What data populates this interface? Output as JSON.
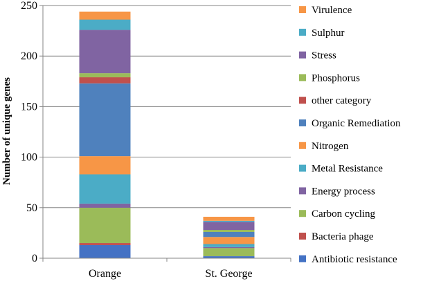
{
  "chart_data": {
    "type": "bar",
    "stacked": true,
    "title": "",
    "xlabel": "",
    "ylabel": "Number of unique genes",
    "ylim": [
      0,
      250
    ],
    "yticks": [
      0,
      50,
      100,
      150,
      200,
      250
    ],
    "grid": true,
    "legend_position": "right",
    "categories": [
      "Orange",
      "St. George"
    ],
    "series": [
      {
        "name": "Antibiotic resistance",
        "color": "#4472C4",
        "values": [
          13,
          2
        ]
      },
      {
        "name": "Bacteria phage",
        "color": "#C0504D",
        "values": [
          2,
          0
        ]
      },
      {
        "name": "Carbon cycling",
        "color": "#9BBB59",
        "values": [
          35,
          8
        ]
      },
      {
        "name": "Energy process",
        "color": "#8064A2",
        "values": [
          4,
          1
        ]
      },
      {
        "name": "Metal Resistance",
        "color": "#4BACC6",
        "values": [
          29,
          3
        ]
      },
      {
        "name": "Nitrogen",
        "color": "#F79646",
        "values": [
          18,
          7
        ]
      },
      {
        "name": "Organic Remediation",
        "color": "#4F81BD",
        "values": [
          72,
          5
        ]
      },
      {
        "name": "other category",
        "color": "#C0504D",
        "values": [
          6,
          0
        ]
      },
      {
        "name": "Phosphorus",
        "color": "#9BBB59",
        "values": [
          4,
          2
        ]
      },
      {
        "name": "Stress",
        "color": "#8064A2",
        "values": [
          43,
          8
        ]
      },
      {
        "name": "Sulphur",
        "color": "#4BACC6",
        "values": [
          10,
          1
        ]
      },
      {
        "name": "Virulence",
        "color": "#F79646",
        "values": [
          8,
          4
        ]
      }
    ]
  }
}
